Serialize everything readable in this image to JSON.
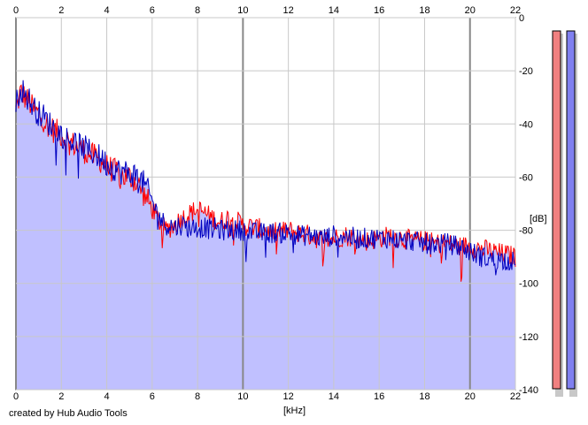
{
  "credit": "created by Hub Audio Tools",
  "colors": {
    "background": "#ffffff",
    "fill": "#c0c0ff",
    "grid_minor": "#c8c8c8",
    "grid_major": "#888888",
    "series_left": "#ff0000",
    "series_right": "#0000c0",
    "meter_left": "#f08080",
    "meter_right": "#8080f0"
  },
  "chart_data": {
    "type": "line",
    "title": "",
    "xlabel": "[kHz]",
    "ylabel": "[dB]",
    "x_ticks": [
      "0",
      "2",
      "4",
      "6",
      "8",
      "10",
      "12",
      "14",
      "16",
      "18",
      "20",
      "22"
    ],
    "y_ticks": [
      "0",
      "-20",
      "-40",
      "-60",
      "-80",
      "-100",
      "-120",
      "-140"
    ],
    "xlim": [
      0,
      22
    ],
    "ylim": [
      -140,
      0
    ],
    "grid": true,
    "x": [
      0.0,
      0.2,
      0.4,
      0.6,
      0.8,
      1.0,
      1.2,
      1.4,
      1.6,
      1.8,
      2.0,
      2.2,
      2.4,
      2.6,
      2.8,
      3.0,
      3.2,
      3.4,
      3.6,
      3.8,
      4.0,
      4.2,
      4.4,
      4.6,
      4.8,
      5.0,
      5.2,
      5.4,
      5.6,
      5.8,
      6.0,
      6.2,
      6.4,
      6.6,
      6.8,
      7.0,
      7.2,
      7.4,
      7.6,
      7.8,
      8.0,
      8.2,
      8.4,
      8.6,
      8.8,
      9.0,
      9.2,
      9.4,
      9.6,
      9.8,
      10.0,
      10.5,
      11.0,
      11.5,
      12.0,
      12.5,
      13.0,
      13.5,
      14.0,
      14.5,
      15.0,
      15.5,
      16.0,
      16.5,
      17.0,
      17.5,
      18.0,
      18.5,
      19.0,
      19.5,
      20.0,
      20.5,
      21.0,
      21.5,
      22.0
    ],
    "series": [
      {
        "values": [
          -35,
          -28,
          -30,
          -32,
          -35,
          -36,
          -38,
          -40,
          -42,
          -43,
          -44,
          -46,
          -47,
          -48,
          -49,
          -50,
          -51,
          -52,
          -53,
          -54,
          -56,
          -57,
          -58,
          -59,
          -60,
          -60,
          -61,
          -63,
          -66,
          -69,
          -72,
          -75,
          -78,
          -80,
          -79,
          -78,
          -76,
          -75,
          -74,
          -73,
          -72,
          -73,
          -74,
          -75,
          -76,
          -77,
          -76,
          -75,
          -76,
          -77,
          -78,
          -79,
          -80,
          -81,
          -80,
          -81,
          -82,
          -84,
          -83,
          -82,
          -83,
          -84,
          -83,
          -82,
          -83,
          -84,
          -84,
          -85,
          -85,
          -86,
          -86,
          -87,
          -88,
          -89,
          -90
        ]
      },
      {
        "values": [
          -33,
          -26,
          -29,
          -31,
          -34,
          -36,
          -37,
          -39,
          -41,
          -42,
          -44,
          -45,
          -46,
          -47,
          -48,
          -49,
          -50,
          -51,
          -52,
          -53,
          -55,
          -56,
          -57,
          -58,
          -58,
          -59,
          -59,
          -60,
          -62,
          -65,
          -69,
          -73,
          -76,
          -78,
          -78,
          -79,
          -78,
          -78,
          -79,
          -79,
          -79,
          -79,
          -79,
          -80,
          -79,
          -80,
          -80,
          -80,
          -80,
          -80,
          -80,
          -81,
          -81,
          -81,
          -81,
          -82,
          -82,
          -83,
          -82,
          -82,
          -83,
          -83,
          -83,
          -83,
          -84,
          -84,
          -85,
          -85,
          -85,
          -86,
          -88,
          -90,
          -91,
          -91,
          -92
        ]
      }
    ],
    "meters": {
      "left_level": -140,
      "right_level": -140
    }
  }
}
